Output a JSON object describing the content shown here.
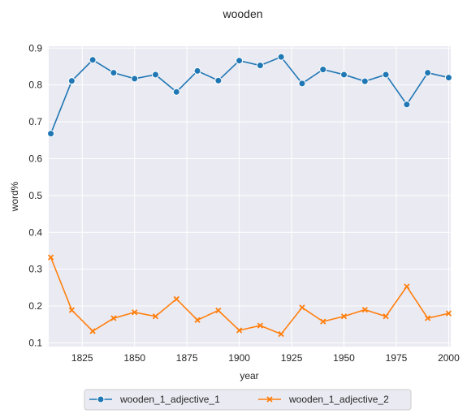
{
  "chart_data": {
    "type": "line",
    "title": "wooden",
    "xlabel": "year",
    "ylabel": "word%",
    "xlim": [
      1809,
      2001
    ],
    "ylim": [
      0.09,
      0.905
    ],
    "xticks": [
      1825,
      1850,
      1875,
      1900,
      1925,
      1950,
      1975,
      2000
    ],
    "yticks": [
      0.1,
      0.2,
      0.3,
      0.4,
      0.5,
      0.6,
      0.7,
      0.8,
      0.9
    ],
    "x": [
      1810,
      1820,
      1830,
      1840,
      1850,
      1860,
      1870,
      1880,
      1890,
      1900,
      1910,
      1920,
      1930,
      1940,
      1950,
      1960,
      1970,
      1980,
      1990,
      2000
    ],
    "series": [
      {
        "name": "wooden_1_adjective_1",
        "marker": "circle",
        "color": "#1f77b4",
        "values": [
          0.668,
          0.811,
          0.868,
          0.833,
          0.817,
          0.828,
          0.781,
          0.838,
          0.812,
          0.866,
          0.853,
          0.876,
          0.804,
          0.842,
          0.828,
          0.81,
          0.828,
          0.747,
          0.833,
          0.82
        ]
      },
      {
        "name": "wooden_1_adjective_2",
        "marker": "x",
        "color": "#ff7f0e",
        "values": [
          0.332,
          0.189,
          0.132,
          0.167,
          0.183,
          0.172,
          0.219,
          0.162,
          0.188,
          0.134,
          0.147,
          0.124,
          0.196,
          0.158,
          0.172,
          0.19,
          0.172,
          0.253,
          0.167,
          0.18
        ]
      }
    ],
    "grid": true,
    "legend_position": "bottom-center",
    "background": "#eaeaf2"
  }
}
